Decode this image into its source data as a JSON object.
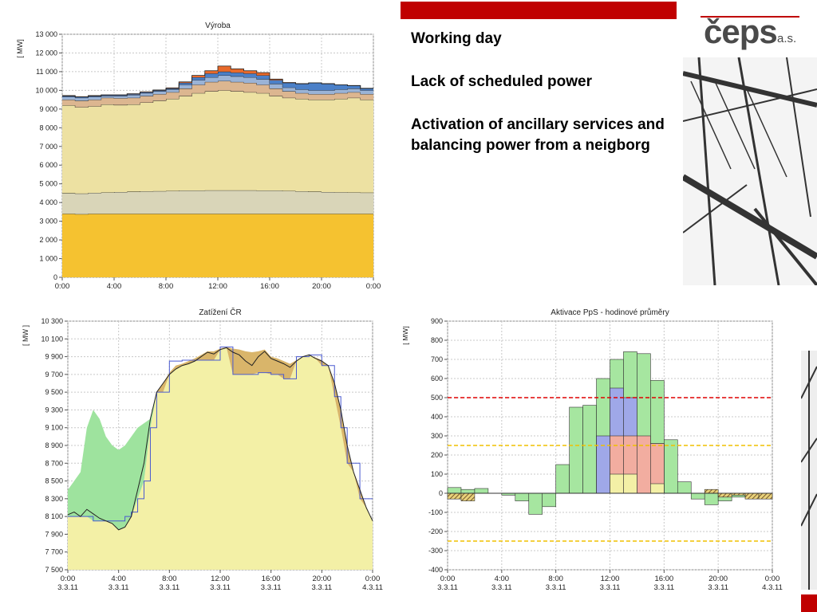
{
  "slide": {
    "heading": "Working day",
    "line2": "Lack of scheduled power",
    "line3": "Activation of ancillary services and balancing power from a neigborg"
  },
  "logo": {
    "text": "čeps",
    "suffix": "a.s."
  },
  "colors": {
    "accent": "#c00000"
  },
  "chart_data": [
    {
      "type": "area",
      "title": "Výroba",
      "ylabel": "[ MW]",
      "ylim": [
        0,
        13000
      ],
      "yticks": [
        "0",
        "1 000",
        "2 000",
        "3 000",
        "4 000",
        "5 000",
        "6 000",
        "7 000",
        "8 000",
        "9 000",
        "10 000",
        "11 000",
        "12 000",
        "13 000"
      ],
      "xticks": [
        "0:00",
        "4:00",
        "8:00",
        "12:00",
        "16:00",
        "20:00",
        "0:00"
      ],
      "x_hours": [
        0,
        1,
        2,
        3,
        4,
        5,
        6,
        7,
        8,
        9,
        10,
        11,
        12,
        13,
        14,
        15,
        16,
        17,
        18,
        19,
        20,
        21,
        22,
        23,
        24
      ],
      "series": [
        {
          "color": "#f5c230",
          "values": [
            3400,
            3380,
            3400,
            3400,
            3400,
            3400,
            3400,
            3400,
            3400,
            3400,
            3400,
            3400,
            3400,
            3400,
            3400,
            3400,
            3400,
            3400,
            3400,
            3400,
            3400,
            3400,
            3400,
            3400,
            3400
          ]
        },
        {
          "color": "#d9d5b8",
          "values": [
            4500,
            4480,
            4520,
            4540,
            4560,
            4580,
            4600,
            4610,
            4620,
            4640,
            4640,
            4650,
            4650,
            4650,
            4650,
            4640,
            4640,
            4620,
            4600,
            4580,
            4560,
            4550,
            4540,
            4530,
            4520
          ]
        },
        {
          "color": "#ede1a2",
          "values": [
            9200,
            9100,
            9150,
            9250,
            9220,
            9250,
            9350,
            9450,
            9550,
            9700,
            9850,
            9950,
            10000,
            9950,
            9900,
            9850,
            9700,
            9600,
            9550,
            9500,
            9500,
            9550,
            9600,
            9500,
            9400
          ]
        },
        {
          "color": "#dcb690",
          "values": [
            9500,
            9450,
            9500,
            9600,
            9580,
            9600,
            9700,
            9800,
            9900,
            10100,
            10300,
            10450,
            10500,
            10450,
            10400,
            10300,
            10100,
            9950,
            9850,
            9800,
            9800,
            9850,
            9900,
            9800,
            9700
          ]
        },
        {
          "color": "#9ab3d6",
          "values": [
            9650,
            9600,
            9650,
            9700,
            9700,
            9750,
            9850,
            9950,
            10050,
            10300,
            10550,
            10700,
            10800,
            10750,
            10700,
            10600,
            10350,
            10150,
            10050,
            10000,
            10000,
            10050,
            10100,
            10000,
            9900
          ]
        },
        {
          "color": "#4b80c8",
          "values": [
            9700,
            9650,
            9700,
            9750,
            9750,
            9800,
            9900,
            10000,
            10100,
            10400,
            10700,
            10900,
            11000,
            10950,
            10900,
            10800,
            10550,
            10400,
            10350,
            10400,
            10350,
            10300,
            10250,
            10100,
            10000
          ]
        },
        {
          "color": "#e8692a",
          "values": [
            9720,
            9660,
            9720,
            9760,
            9760,
            9820,
            9920,
            10020,
            10130,
            10450,
            10800,
            11050,
            11300,
            11150,
            11050,
            10950,
            10600,
            10420,
            10360,
            10400,
            10360,
            10300,
            10260,
            10110,
            10010
          ]
        }
      ]
    },
    {
      "type": "line",
      "title": "Zatížení ČR",
      "ylabel": "[ MW ]",
      "ylim": [
        7500,
        10300
      ],
      "yticks": [
        "7 500",
        "7 700",
        "7 900",
        "8 100",
        "8 300",
        "8 500",
        "8 700",
        "8 900",
        "9 100",
        "9 300",
        "9 500",
        "9 700",
        "9 900",
        "10 100",
        "10 300"
      ],
      "xticks": [
        "0:00",
        "4:00",
        "8:00",
        "12:00",
        "16:00",
        "20:00",
        "0:00"
      ],
      "xticks2": [
        "3.3.11",
        "3.3.11",
        "3.3.11",
        "3.3.11",
        "3.3.11",
        "3.3.11",
        "4.3.11"
      ],
      "x_hours": [
        0,
        0.5,
        1,
        1.5,
        2,
        2.5,
        3,
        3.5,
        4,
        4.5,
        5,
        5.5,
        6,
        6.5,
        7,
        7.5,
        8,
        8.5,
        9,
        9.5,
        10,
        10.5,
        11,
        11.5,
        12,
        12.5,
        13,
        13.5,
        14,
        14.5,
        15,
        15.5,
        16,
        16.5,
        17,
        17.5,
        18,
        18.5,
        19,
        19.5,
        20,
        20.5,
        21,
        21.5,
        22,
        22.5,
        23,
        23.5,
        24
      ],
      "actual": [
        8120,
        8150,
        8100,
        8180,
        8130,
        8080,
        8050,
        8020,
        7950,
        7980,
        8100,
        8400,
        8700,
        9200,
        9500,
        9600,
        9700,
        9760,
        9800,
        9820,
        9850,
        9900,
        9950,
        9930,
        9980,
        10000,
        9950,
        9920,
        9850,
        9800,
        9900,
        9960,
        9880,
        9850,
        9820,
        9780,
        9850,
        9900,
        9920,
        9880,
        9850,
        9800,
        9600,
        9300,
        8900,
        8600,
        8400,
        8200,
        8050
      ],
      "planned": [
        8100,
        8100,
        8100,
        8100,
        8050,
        8050,
        8050,
        8050,
        8050,
        8100,
        8150,
        8300,
        8500,
        9100,
        9500,
        9500,
        9850,
        9850,
        9860,
        9860,
        9860,
        9860,
        9860,
        9860,
        10010,
        10010,
        9700,
        9700,
        9700,
        9700,
        9720,
        9720,
        9700,
        9700,
        9650,
        9650,
        9900,
        9900,
        9920,
        9920,
        9800,
        9800,
        9450,
        9100,
        8700,
        8700,
        8300,
        8300,
        8300
      ],
      "upper_fill": [
        8400,
        8500,
        8600,
        9100,
        9300,
        9200,
        9000,
        8900,
        8850,
        8900,
        9000,
        9100,
        9150,
        9200,
        9500,
        9600,
        9720,
        9800,
        9820,
        9850,
        9880,
        9920,
        9960,
        9960,
        9990,
        10010,
        9990,
        9980,
        9960,
        9950,
        9960,
        9980,
        9900,
        9880,
        9850,
        9820,
        9860,
        9900,
        9920,
        9890,
        9860,
        9800,
        9610,
        9310,
        8910,
        8610,
        8410,
        8210,
        8050
      ]
    },
    {
      "type": "area",
      "title": "Aktivace PpS - hodinové průměry",
      "ylabel": "[ MW]",
      "ylim": [
        -400,
        900
      ],
      "yticks": [
        "-400",
        "-300",
        "-200",
        "-100",
        "0",
        "100",
        "200",
        "300",
        "400",
        "500",
        "600",
        "700",
        "800",
        "900"
      ],
      "xticks": [
        "0:00",
        "4:00",
        "8:00",
        "12:00",
        "16:00",
        "20:00",
        "0:00"
      ],
      "xticks2": [
        "3.3.11",
        "3.3.11",
        "3.3.11",
        "3.3.11",
        "3.3.11",
        "3.3.11",
        "4.3.11"
      ],
      "hours": [
        0,
        1,
        2,
        3,
        4,
        5,
        6,
        7,
        8,
        9,
        10,
        11,
        12,
        13,
        14,
        15,
        16,
        17,
        18,
        19,
        20,
        21,
        22,
        23
      ],
      "total_green": [
        30,
        20,
        25,
        0,
        -10,
        -40,
        -110,
        -70,
        150,
        450,
        460,
        600,
        700,
        740,
        730,
        590,
        280,
        60,
        -30,
        -60,
        -40,
        -20,
        -30,
        -20
      ],
      "blue": [
        0,
        0,
        0,
        0,
        0,
        0,
        0,
        0,
        0,
        0,
        0,
        300,
        550,
        500,
        200,
        260,
        0,
        0,
        0,
        0,
        0,
        0,
        0,
        0
      ],
      "salmon": [
        0,
        0,
        0,
        0,
        0,
        0,
        0,
        0,
        0,
        0,
        0,
        0,
        300,
        300,
        300,
        260,
        0,
        0,
        0,
        0,
        0,
        0,
        0,
        0
      ],
      "yellow": [
        0,
        0,
        0,
        0,
        0,
        0,
        0,
        0,
        0,
        0,
        0,
        0,
        100,
        100,
        0,
        50,
        0,
        0,
        0,
        0,
        0,
        0,
        0,
        0
      ],
      "hatch": [
        -30,
        -40,
        0,
        0,
        0,
        0,
        0,
        0,
        0,
        0,
        0,
        0,
        0,
        0,
        0,
        0,
        0,
        0,
        0,
        20,
        -20,
        -10,
        -30,
        -30
      ],
      "ref_lines": [
        {
          "value": 500,
          "color": "#e00000"
        },
        {
          "value": 250,
          "color": "#f0c000"
        },
        {
          "value": -250,
          "color": "#f0c000"
        }
      ]
    }
  ]
}
